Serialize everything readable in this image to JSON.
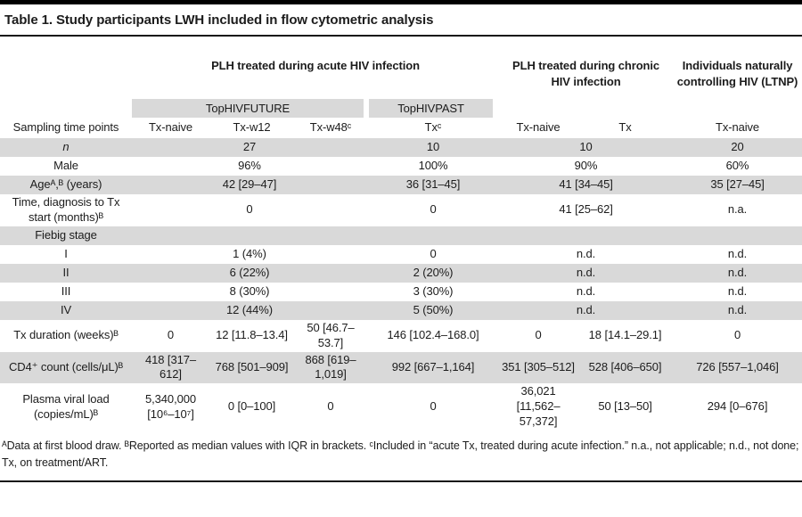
{
  "title": "Table 1. Study participants LWH included in flow cytometric analysis",
  "colors": {
    "row_shade": "#d9d9d9",
    "text": "#1c1c1c",
    "rule": "#161616"
  },
  "table": {
    "group_headers": [
      {
        "label": "PLH treated during acute HIV infection"
      },
      {
        "label": "PLH treated during chronic HIV infection"
      },
      {
        "label": "Individuals naturally controlling HIV (LTNP)"
      }
    ],
    "subgroup_headers": [
      {
        "label": "TopHIVFUTURE"
      },
      {
        "label": "TopHIVPAST"
      }
    ],
    "column_header_row": {
      "label": "Sampling time points",
      "columns": [
        "Tx-naive",
        "Tx-w12",
        "Tx-w48ᶜ",
        "Txᶜ",
        "Tx-naive",
        "Tx",
        "Tx-naive"
      ]
    },
    "rows": [
      {
        "label": "n",
        "italic": true,
        "shade": true,
        "cells": [
          {
            "t": "27",
            "span": 3
          },
          {
            "t": "10",
            "span": 1
          },
          {
            "t": "10",
            "span": 2
          },
          {
            "t": "20",
            "span": 1
          }
        ]
      },
      {
        "label": "Male",
        "shade": false,
        "cells": [
          {
            "t": "96%",
            "span": 3
          },
          {
            "t": "100%",
            "span": 1
          },
          {
            "t": "90%",
            "span": 2
          },
          {
            "t": "60%",
            "span": 1
          }
        ]
      },
      {
        "label": "Ageᴬ,ᴮ (years)",
        "shade": true,
        "cells": [
          {
            "t": "42 [29–47]",
            "span": 3
          },
          {
            "t": "36 [31–45]",
            "span": 1
          },
          {
            "t": "41 [34–45]",
            "span": 2
          },
          {
            "t": "35 [27–45]",
            "span": 1
          }
        ]
      },
      {
        "label": "Time, diagnosis to Tx start (months)ᴮ",
        "shade": false,
        "cells": [
          {
            "t": "0",
            "span": 3
          },
          {
            "t": "0",
            "span": 1
          },
          {
            "t": "41 [25–62]",
            "span": 2
          },
          {
            "t": "n.a.",
            "span": 1
          }
        ]
      },
      {
        "label": "Fiebig stage",
        "shade": true,
        "cells": [
          {
            "t": "",
            "span": 3
          },
          {
            "t": "",
            "span": 1
          },
          {
            "t": "",
            "span": 2
          },
          {
            "t": "",
            "span": 1
          }
        ]
      },
      {
        "label": "I",
        "shade": false,
        "cells": [
          {
            "t": "1 (4%)",
            "span": 3
          },
          {
            "t": "0",
            "span": 1
          },
          {
            "t": "n.d.",
            "span": 2
          },
          {
            "t": "n.d.",
            "span": 1
          }
        ]
      },
      {
        "label": "II",
        "shade": true,
        "cells": [
          {
            "t": "6 (22%)",
            "span": 3
          },
          {
            "t": "2 (20%)",
            "span": 1
          },
          {
            "t": "n.d.",
            "span": 2
          },
          {
            "t": "n.d.",
            "span": 1
          }
        ]
      },
      {
        "label": "III",
        "shade": false,
        "cells": [
          {
            "t": "8 (30%)",
            "span": 3
          },
          {
            "t": "3 (30%)",
            "span": 1
          },
          {
            "t": "n.d.",
            "span": 2
          },
          {
            "t": "n.d.",
            "span": 1
          }
        ]
      },
      {
        "label": "IV",
        "shade": true,
        "cells": [
          {
            "t": "12 (44%)",
            "span": 3
          },
          {
            "t": "5 (50%)",
            "span": 1
          },
          {
            "t": "n.d.",
            "span": 2
          },
          {
            "t": "n.d.",
            "span": 1
          }
        ]
      },
      {
        "label": "Tx duration (weeks)ᴮ",
        "shade": false,
        "cells": [
          {
            "t": "0"
          },
          {
            "t": "12 [11.8–13.4]"
          },
          {
            "t": "50 [46.7–53.7]"
          },
          {
            "t": "146 [102.4–168.0]"
          },
          {
            "t": "0"
          },
          {
            "t": "18 [14.1–29.1]"
          },
          {
            "t": "0"
          }
        ]
      },
      {
        "label": "CD4⁺ count (cells/μL)ᴮ",
        "shade": true,
        "cells": [
          {
            "t": "418 [317–612]"
          },
          {
            "t": "768 [501–909]"
          },
          {
            "t": "868 [619–1,019]"
          },
          {
            "t": "992 [667–1,164]"
          },
          {
            "t": "351 [305–512]"
          },
          {
            "t": "528 [406–650]"
          },
          {
            "t": "726 [557–1,046]"
          }
        ]
      },
      {
        "label": "Plasma viral load (copies/mL)ᴮ",
        "shade": false,
        "cells": [
          {
            "t": "5,340,000 [10⁶–10⁷]"
          },
          {
            "t": "0 [0–100]"
          },
          {
            "t": "0"
          },
          {
            "t": "0"
          },
          {
            "t": "36,021 [11,562–57,372]"
          },
          {
            "t": "50 [13–50]"
          },
          {
            "t": "294 [0–676]"
          }
        ]
      }
    ]
  },
  "footnote": "ᴬData at first blood draw. ᴮReported as median values with IQR in brackets. ᶜIncluded in “acute Tx, treated during acute infection.” n.a., not applicable; n.d., not done; Tx, on treatment/ART."
}
